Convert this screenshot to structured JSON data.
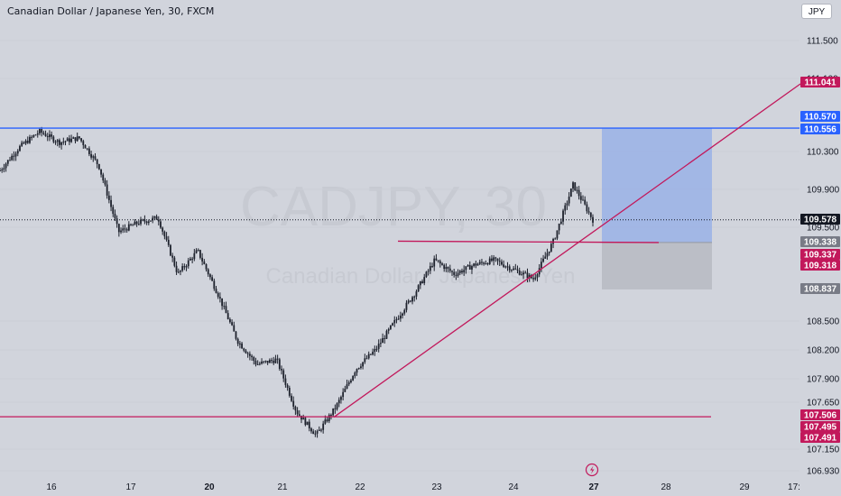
{
  "header": {
    "symbol": "Canadian Dollar / Japanese Yen, 30, FXCM"
  },
  "currency_button": "JPY",
  "watermark": {
    "ticker": "CADJPY, 30",
    "name": "Canadian Dollar / Japanese Yen"
  },
  "colors": {
    "background": "#d1d4dc",
    "candle": "#1e222d",
    "blue_line": "#2962ff",
    "pink_line": "#c2185b",
    "target_zone": "#9ab1e6",
    "stop_zone": "#b8bbc3",
    "last_price_tag": "#131722",
    "gray_tag": "#787b86"
  },
  "price_labels": [
    {
      "value": "111.041",
      "color": "#c2185b"
    },
    {
      "value": "110.570",
      "color": "#2962ff"
    },
    {
      "value": "110.556",
      "color": "#2962ff"
    },
    {
      "value": "109.578",
      "color": "#131722"
    },
    {
      "value": "109.338",
      "color": "#787b86"
    },
    {
      "value": "109.337",
      "color": "#c2185b"
    },
    {
      "value": "109.318",
      "color": "#c2185b"
    },
    {
      "value": "108.837",
      "color": "#787b86"
    },
    {
      "value": "107.506",
      "color": "#c2185b"
    },
    {
      "value": "107.495",
      "color": "#c2185b"
    },
    {
      "value": "107.491",
      "color": "#c2185b"
    }
  ],
  "chart_data": {
    "type": "candlestick",
    "y_ticks": [
      "111.500",
      "111.100",
      "110.300",
      "109.900",
      "109.500",
      "108.500",
      "108.200",
      "107.900",
      "107.650",
      "107.150",
      "106.930"
    ],
    "x_ticks": [
      "16",
      "17",
      "20",
      "21",
      "22",
      "23",
      "24",
      "27",
      "28",
      "29",
      "17:"
    ],
    "ylim": [
      106.93,
      111.5
    ],
    "last_price": 109.578,
    "horizontal_lines": [
      {
        "price": 110.556,
        "color": "blue"
      },
      {
        "price": 107.495,
        "color": "pink"
      },
      {
        "price": 109.337,
        "color": "pink"
      }
    ],
    "trendline": {
      "from": {
        "x": "21",
        "price": 107.491
      },
      "to": {
        "x": "29",
        "price": 111.041
      }
    },
    "long_position": {
      "entry": 109.338,
      "target": 110.556,
      "stop": 108.837
    },
    "close_series": [
      {
        "x": "15",
        "close": 110.1
      },
      {
        "x": "15",
        "close": 110.35
      },
      {
        "x": "16",
        "close": 110.52
      },
      {
        "x": "16",
        "close": 110.4
      },
      {
        "x": "16",
        "close": 110.45
      },
      {
        "x": "17",
        "close": 110.15
      },
      {
        "x": "17",
        "close": 109.45
      },
      {
        "x": "17",
        "close": 109.55
      },
      {
        "x": "17",
        "close": 109.6
      },
      {
        "x": "20",
        "close": 109.0
      },
      {
        "x": "20",
        "close": 109.25
      },
      {
        "x": "20",
        "close": 108.8
      },
      {
        "x": "20",
        "close": 108.3
      },
      {
        "x": "21",
        "close": 108.05
      },
      {
        "x": "21",
        "close": 108.1
      },
      {
        "x": "21",
        "close": 107.55
      },
      {
        "x": "21",
        "close": 107.3
      },
      {
        "x": "21",
        "close": 107.6
      },
      {
        "x": "22",
        "close": 108.0
      },
      {
        "x": "22",
        "close": 108.2
      },
      {
        "x": "22",
        "close": 108.5
      },
      {
        "x": "22",
        "close": 108.8
      },
      {
        "x": "23",
        "close": 109.15
      },
      {
        "x": "23",
        "close": 109.0
      },
      {
        "x": "23",
        "close": 109.1
      },
      {
        "x": "24",
        "close": 109.15
      },
      {
        "x": "24",
        "close": 109.05
      },
      {
        "x": "24",
        "close": 108.95
      },
      {
        "x": "24",
        "close": 109.35
      },
      {
        "x": "27",
        "close": 109.95
      },
      {
        "x": "27",
        "close": 109.578
      }
    ]
  }
}
